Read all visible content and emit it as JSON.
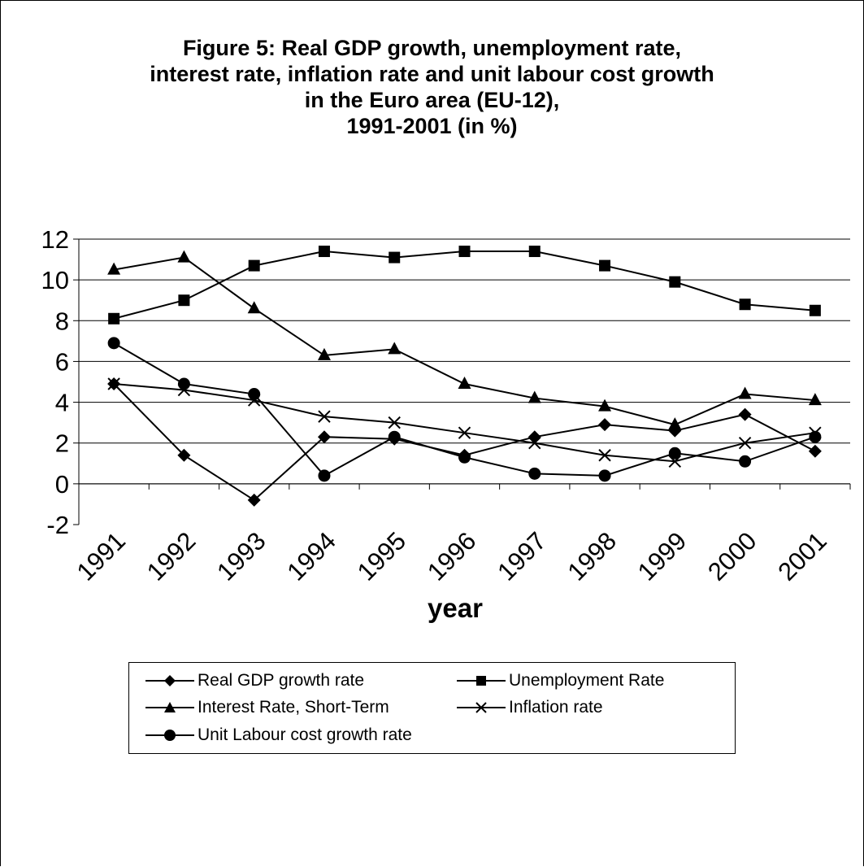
{
  "chart_data": {
    "type": "line",
    "title_lines": [
      "Figure 5: Real GDP growth, unemployment rate,",
      "interest rate, inflation rate and unit labour cost growth",
      "in the Euro area (EU-12),",
      "1991-2001 (in %)"
    ],
    "xlabel": "year",
    "ylabel": "",
    "categories": [
      "1991",
      "1992",
      "1993",
      "1994",
      "1995",
      "1996",
      "1997",
      "1998",
      "1999",
      "2000",
      "2001"
    ],
    "ylim": [
      -2,
      12
    ],
    "yticks": [
      "-2",
      "0",
      "2",
      "4",
      "6",
      "8",
      "10",
      "12"
    ],
    "grid": true,
    "legend_position": "bottom",
    "series": [
      {
        "name": "Real GDP growth rate",
        "marker": "diamond",
        "values": [
          4.9,
          1.4,
          -0.8,
          2.3,
          2.2,
          1.4,
          2.3,
          2.9,
          2.6,
          3.4,
          1.6
        ]
      },
      {
        "name": "Unemployment Rate",
        "marker": "square",
        "values": [
          8.1,
          9.0,
          10.7,
          11.4,
          11.1,
          11.4,
          11.4,
          10.7,
          9.9,
          8.8,
          8.5
        ]
      },
      {
        "name": "Interest Rate, Short-Term",
        "marker": "triangle",
        "values": [
          10.5,
          11.1,
          8.6,
          6.3,
          6.6,
          4.9,
          4.2,
          3.8,
          2.9,
          4.4,
          4.1
        ]
      },
      {
        "name": "Inflation rate",
        "marker": "x",
        "values": [
          4.9,
          4.6,
          4.1,
          3.3,
          3.0,
          2.5,
          2.0,
          1.4,
          1.1,
          2.0,
          2.5
        ]
      },
      {
        "name": "Unit Labour cost growth rate",
        "marker": "circle",
        "values": [
          6.9,
          4.9,
          4.4,
          0.4,
          2.3,
          1.3,
          0.5,
          0.4,
          1.5,
          1.1,
          2.3
        ]
      }
    ]
  }
}
